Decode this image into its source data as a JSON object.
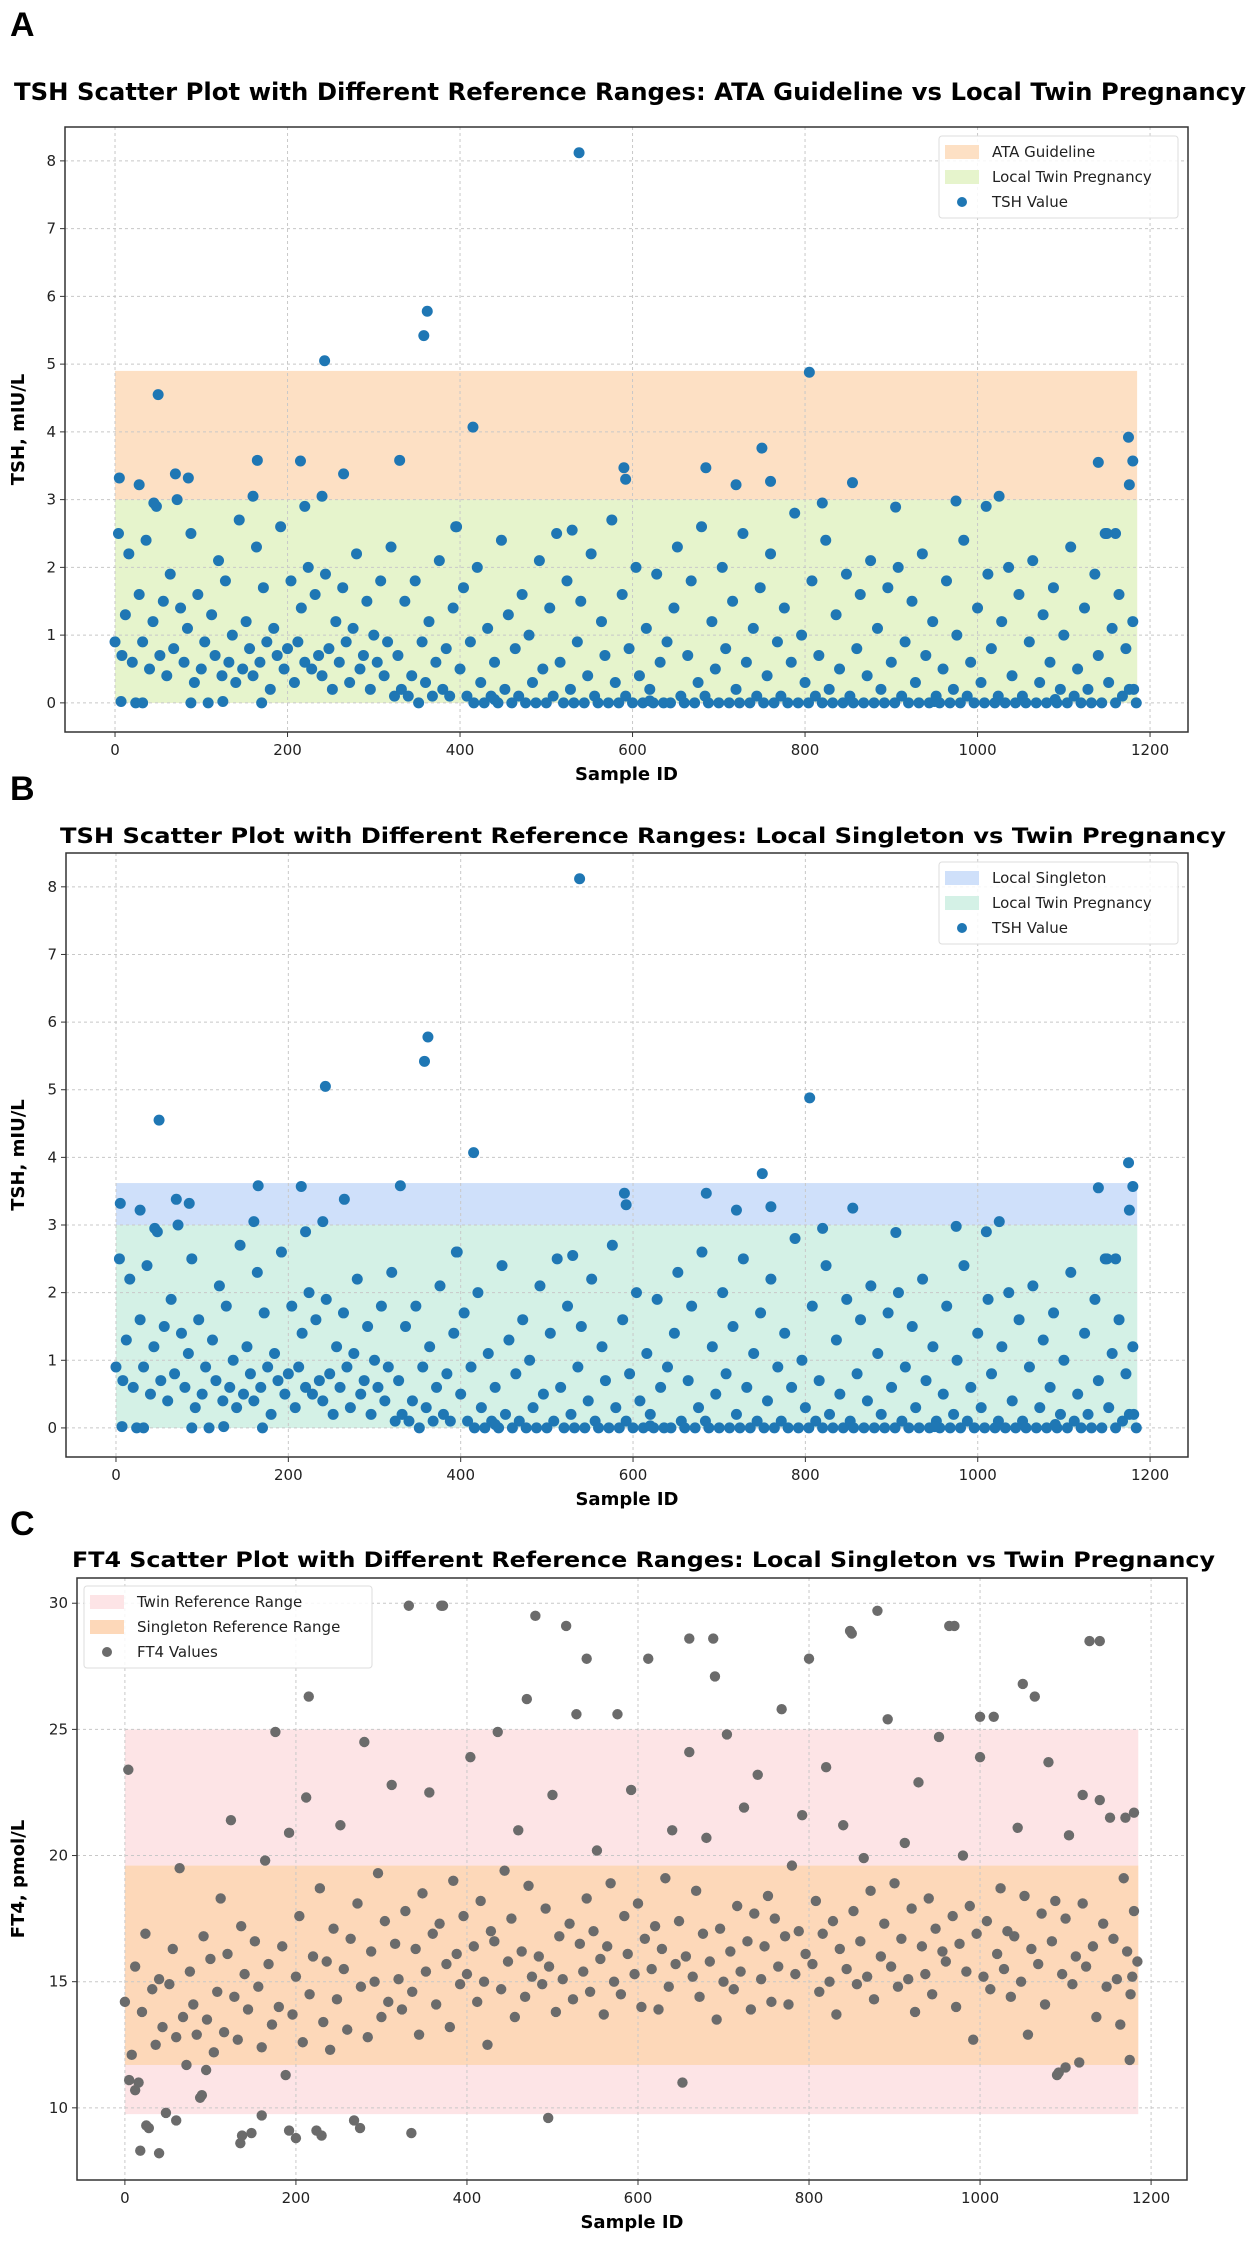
{
  "datasets": {
    "tsh": {
      "x_start": 0,
      "x_step": 4,
      "y": [
        0.9,
        2.5,
        0.7,
        1.3,
        2.2,
        0.6,
        0,
        1.6,
        0.9,
        2.4,
        0.5,
        1.2,
        2.9,
        0.7,
        1.5,
        0.4,
        1.9,
        0.8,
        3.0,
        1.4,
        0.6,
        1.1,
        2.5,
        0.3,
        1.6,
        0.5,
        0.9,
        0,
        1.3,
        0.7,
        2.1,
        0.4,
        1.8,
        0.6,
        1.0,
        0.3,
        2.7,
        0.5,
        1.2,
        0.8,
        0.4,
        2.3,
        0.6,
        1.7,
        0.9,
        0.2,
        1.1,
        0.7,
        2.6,
        0.5,
        0.8,
        1.8,
        0.3,
        0.9,
        1.4,
        0.6,
        2.0,
        0.5,
        1.6,
        0.7,
        0.4,
        1.9,
        0.8,
        0.2,
        1.2,
        0.6,
        1.7,
        0.9,
        0.3,
        1.1,
        2.2,
        0.5,
        0.7,
        1.5,
        0.2,
        1.0,
        0.6,
        1.8,
        0.4,
        0.9,
        2.3,
        0.1,
        0.7,
        0.2,
        1.5,
        0.1,
        0.4,
        1.8,
        0,
        0.9,
        0.3,
        1.2,
        0.1,
        0.6,
        2.1,
        0.2,
        0.8,
        0.1,
        1.4,
        2.6,
        0.5,
        1.7,
        0.1,
        0.9,
        0,
        2.0,
        0.3,
        0,
        1.1,
        0.1,
        0.6,
        0,
        2.4,
        0.2,
        1.3,
        0,
        0.8,
        0.1,
        1.6,
        0,
        1.0,
        0.3,
        0,
        2.1,
        0.5,
        0,
        1.4,
        0.1,
        2.5,
        0.6,
        0,
        1.8,
        0.2,
        0,
        0.9,
        1.5,
        0,
        0.4,
        2.2,
        0.1,
        0,
        1.2,
        0.7,
        0,
        2.7,
        0.3,
        0,
        1.6,
        0.1,
        0.8,
        0,
        2.0,
        0.4,
        0,
        1.1,
        0.2,
        0,
        1.9,
        0.6,
        0,
        0.9,
        0,
        1.4,
        2.3,
        0.1,
        0,
        0.7,
        1.8,
        0,
        0.3,
        2.6,
        0.1,
        0,
        1.2,
        0.5,
        0,
        2.0,
        0.8,
        0,
        1.5,
        0.2,
        0,
        2.5,
        0.6,
        0,
        1.1,
        0.1,
        1.7,
        0,
        0.4,
        2.2,
        0,
        0.9,
        0.1,
        1.4,
        0,
        0.6,
        2.8,
        0,
        1.0,
        0.3,
        0,
        1.8,
        0.1,
        0.7,
        0,
        2.4,
        0.2,
        0,
        1.3,
        0.5,
        0,
        1.9,
        0.1,
        0,
        0.8,
        1.6,
        0,
        0.4,
        2.1,
        0,
        1.1,
        0.2,
        0,
        1.7,
        0.6,
        0,
        2.0,
        0.1,
        0.9,
        0,
        1.5,
        0.3,
        0,
        2.2,
        0.7,
        0,
        1.2,
        0.1,
        0,
        0.5,
        1.8,
        0,
        0.2,
        1.0,
        0,
        2.4,
        0.1,
        0.6,
        0,
        1.4,
        0.3,
        0,
        1.9,
        0.8,
        0,
        0.1,
        1.2,
        0,
        2.0,
        0.4,
        0,
        1.6,
        0.1,
        0,
        0.9,
        2.1,
        0,
        0.3,
        1.3,
        0,
        0.6,
        1.7,
        0,
        0.2,
        1.0,
        0,
        2.3,
        0.1,
        0.5,
        0,
        1.4,
        0.2,
        0,
        1.9,
        0.7,
        0,
        2.5,
        0.3,
        1.1,
        0,
        1.6,
        0.1,
        0.8,
        0.2,
        1.2,
        0
      ],
      "extra_points": [
        [
          50,
          4.55
        ],
        [
          243,
          5.05
        ],
        [
          358,
          5.42
        ],
        [
          362,
          5.78
        ],
        [
          415,
          4.07
        ],
        [
          538,
          8.12
        ],
        [
          805,
          4.88
        ],
        [
          750,
          3.76
        ],
        [
          1175,
          3.92
        ],
        [
          1180,
          3.57
        ],
        [
          1140,
          3.55
        ],
        [
          1176,
          3.22
        ],
        [
          330,
          3.58
        ],
        [
          165,
          3.58
        ],
        [
          215,
          3.57
        ],
        [
          265,
          3.38
        ],
        [
          70,
          3.38
        ],
        [
          85,
          3.32
        ],
        [
          5,
          3.32
        ],
        [
          28,
          3.22
        ],
        [
          590,
          3.47
        ],
        [
          592,
          3.3
        ],
        [
          685,
          3.47
        ],
        [
          720,
          3.22
        ],
        [
          760,
          3.27
        ],
        [
          855,
          3.25
        ],
        [
          1025,
          3.05
        ],
        [
          1010,
          2.9
        ],
        [
          975,
          2.98
        ],
        [
          905,
          2.89
        ],
        [
          820,
          2.95
        ],
        [
          160,
          3.05
        ],
        [
          240,
          3.05
        ],
        [
          45,
          2.95
        ],
        [
          220,
          2.9
        ],
        [
          1160,
          2.5
        ],
        [
          1150,
          2.5
        ],
        [
          530,
          2.55
        ],
        [
          395,
          2.6
        ],
        [
          7,
          0.02
        ],
        [
          32,
          0
        ],
        [
          88,
          0
        ],
        [
          125,
          0.02
        ],
        [
          170,
          0
        ],
        [
          440,
          0.05
        ],
        [
          620,
          0.03
        ],
        [
          950,
          0.02
        ],
        [
          1090,
          0.05
        ],
        [
          1181,
          0.2
        ]
      ]
    },
    "ft4": {
      "x_start": 0,
      "x_step": 4,
      "y": [
        14.2,
        23.4,
        12.1,
        15.6,
        11.0,
        13.8,
        16.9,
        9.2,
        14.7,
        12.5,
        15.1,
        13.2,
        9.8,
        14.9,
        16.3,
        12.8,
        19.5,
        13.6,
        11.7,
        15.4,
        14.1,
        12.9,
        10.4,
        16.8,
        13.5,
        15.9,
        12.2,
        14.6,
        18.3,
        13.0,
        16.1,
        21.4,
        14.4,
        12.7,
        17.2,
        15.3,
        13.9,
        9.0,
        16.6,
        14.8,
        12.4,
        19.8,
        15.7,
        13.3,
        24.9,
        14.0,
        16.4,
        11.3,
        20.9,
        13.7,
        15.2,
        17.6,
        12.6,
        22.3,
        14.5,
        16.0,
        9.1,
        18.7,
        13.4,
        15.8,
        12.3,
        17.1,
        14.3,
        21.2,
        15.5,
        13.1,
        16.7,
        9.5,
        18.1,
        14.8,
        24.5,
        12.8,
        16.2,
        15.0,
        19.3,
        13.6,
        17.4,
        14.2,
        22.8,
        16.5,
        15.1,
        13.9,
        17.8,
        29.9,
        14.6,
        16.3,
        12.9,
        18.5,
        15.4,
        22.5,
        16.9,
        14.1,
        17.3,
        29.9,
        15.7,
        13.2,
        19.0,
        16.1,
        14.9,
        17.6,
        15.3,
        23.9,
        16.4,
        14.2,
        18.2,
        15.0,
        12.5,
        17.0,
        16.6,
        24.9,
        14.7,
        19.4,
        15.8,
        17.5,
        13.6,
        21.0,
        16.2,
        14.4,
        18.8,
        15.2,
        29.5,
        16.0,
        14.9,
        17.9,
        15.6,
        22.4,
        13.8,
        16.8,
        15.1,
        29.1,
        17.3,
        14.3,
        25.6,
        16.5,
        15.4,
        18.3,
        14.6,
        17.0,
        20.2,
        15.9,
        13.7,
        16.4,
        18.9,
        15.0,
        25.6,
        14.5,
        17.6,
        16.1,
        22.6,
        15.3,
        18.1,
        14.0,
        16.7,
        27.8,
        15.5,
        17.2,
        13.9,
        16.3,
        19.1,
        14.8,
        21.0,
        15.7,
        17.4,
        11.0,
        16.0,
        24.1,
        15.2,
        18.6,
        14.4,
        16.9,
        20.7,
        15.8,
        28.6,
        13.5,
        17.1,
        15.0,
        24.8,
        16.2,
        14.7,
        18.0,
        15.4,
        21.9,
        16.6,
        13.9,
        17.7,
        23.2,
        15.1,
        16.4,
        18.4,
        14.2,
        17.5,
        15.6,
        25.8,
        16.8,
        14.1,
        19.6,
        15.3,
        17.0,
        21.6,
        16.1,
        27.8,
        15.7,
        18.2,
        14.6,
        16.9,
        23.5,
        15.0,
        17.4,
        13.7,
        16.3,
        21.2,
        15.5,
        28.9,
        17.8,
        14.9,
        16.6,
        19.9,
        15.2,
        18.6,
        14.3,
        29.7,
        16.0,
        17.3,
        25.4,
        15.6,
        18.9,
        14.8,
        16.7,
        20.5,
        15.1,
        17.9,
        13.8,
        22.9,
        16.4,
        15.3,
        18.3,
        14.5,
        17.1,
        24.7,
        16.2,
        15.8,
        29.1,
        17.6,
        14.0,
        16.5,
        20.0,
        15.4,
        18.0,
        12.7,
        16.9,
        23.9,
        15.2,
        17.4,
        14.7,
        25.5,
        16.1,
        18.7,
        15.5,
        17.0,
        14.4,
        16.8,
        21.1,
        15.0,
        18.4,
        12.9,
        16.3,
        26.3,
        15.7,
        17.7,
        14.1,
        23.7,
        16.6,
        18.2,
        11.4,
        15.3,
        17.5,
        20.8,
        14.9,
        16.0,
        11.8,
        18.1,
        15.6,
        28.5,
        16.4,
        13.6,
        22.2,
        17.3,
        14.8,
        21.5,
        16.7,
        15.1,
        13.3,
        19.1,
        16.2,
        14.5,
        21.7,
        15.8
      ],
      "extra_points": [
        [
          18,
          8.3
        ],
        [
          40,
          8.2
        ],
        [
          135,
          8.6
        ],
        [
          137,
          8.9
        ],
        [
          200,
          8.8
        ],
        [
          192,
          9.1
        ],
        [
          335,
          9.0
        ],
        [
          495,
          9.6
        ],
        [
          25,
          9.3
        ],
        [
          60,
          9.5
        ],
        [
          160,
          9.7
        ],
        [
          230,
          8.9
        ],
        [
          275,
          9.2
        ],
        [
          850,
          28.8
        ],
        [
          1050,
          26.8
        ],
        [
          970,
          29.1
        ],
        [
          1140,
          28.5
        ],
        [
          660,
          28.6
        ],
        [
          690,
          27.1
        ],
        [
          540,
          27.8
        ],
        [
          370,
          29.9
        ],
        [
          470,
          26.2
        ],
        [
          215,
          26.3
        ],
        [
          1000,
          25.5
        ],
        [
          1120,
          22.4
        ],
        [
          1170,
          21.5
        ],
        [
          1180,
          17.8
        ],
        [
          1178,
          15.2
        ],
        [
          1090,
          11.3
        ],
        [
          1100,
          11.6
        ],
        [
          1175,
          11.9
        ],
        [
          5,
          11.1
        ],
        [
          12,
          10.7
        ],
        [
          90,
          10.5
        ],
        [
          95,
          11.5
        ]
      ]
    }
  },
  "chart_data": [
    {
      "panel": "A",
      "type": "scatter",
      "title": "TSH Scatter Plot with Different Reference Ranges: ATA Guideline vs Local Twin Pregnancy",
      "xlabel": "Sample ID",
      "ylabel": "TSH, mIU/L",
      "xlim": [
        -58,
        1244
      ],
      "ylim": [
        -0.43,
        8.5
      ],
      "xticks": [
        0,
        200,
        400,
        600,
        800,
        1000,
        1200
      ],
      "yticks": [
        0,
        1,
        2,
        3,
        4,
        5,
        6,
        7,
        8
      ],
      "grid": true,
      "dataset": "tsh",
      "point_color": "#1f77b4",
      "bands": [
        {
          "label": "ATA Guideline",
          "y_range": [
            0,
            4.9
          ],
          "x_range": [
            0,
            1185
          ],
          "color": "#fde0c4"
        },
        {
          "label": "Local Twin Pregnancy",
          "y_range": [
            0,
            3.0
          ],
          "x_range": [
            0,
            1185
          ],
          "color": "#e6f4cc"
        }
      ],
      "legend": {
        "placement": "top-right",
        "entries": [
          "ATA Guideline",
          "Local Twin Pregnancy",
          "TSH Value"
        ]
      }
    },
    {
      "panel": "B",
      "type": "scatter",
      "title": "TSH Scatter Plot with Different Reference Ranges: Local Singleton vs Twin Pregnancy",
      "xlabel": "Sample ID",
      "ylabel": "TSH, mIU/L",
      "xlim": [
        -58,
        1244
      ],
      "ylim": [
        -0.43,
        8.5
      ],
      "xticks": [
        0,
        200,
        400,
        600,
        800,
        1000,
        1200
      ],
      "yticks": [
        0,
        1,
        2,
        3,
        4,
        5,
        6,
        7,
        8
      ],
      "grid": true,
      "dataset": "tsh",
      "point_color": "#1f77b4",
      "bands": [
        {
          "label": "Local Singleton",
          "y_range": [
            0,
            3.62
          ],
          "x_range": [
            0,
            1185
          ],
          "color": "#cfe0fa"
        },
        {
          "label": "Local Twin Pregnancy",
          "y_range": [
            0,
            3.0
          ],
          "x_range": [
            0,
            1185
          ],
          "color": "#d4f1e6"
        }
      ],
      "legend": {
        "placement": "top-right",
        "entries": [
          "Local Singleton",
          "Local Twin Pregnancy",
          "TSH Value"
        ]
      }
    },
    {
      "panel": "C",
      "type": "scatter",
      "title": "FT4 Scatter Plot with Different Reference Ranges: Local Singleton vs Twin Pregnancy",
      "xlabel": "Sample ID",
      "ylabel": "FT4, pmol/L",
      "xlim": [
        -56,
        1242
      ],
      "ylim": [
        7.14,
        31.0
      ],
      "xticks": [
        0,
        200,
        400,
        600,
        800,
        1000,
        1200
      ],
      "yticks": [
        10,
        15,
        20,
        25,
        30
      ],
      "grid": true,
      "dataset": "ft4",
      "point_color": "#6b6b6b",
      "bands": [
        {
          "label": "Twin Reference Range",
          "y_range": [
            9.75,
            25.0
          ],
          "x_range": [
            0,
            1185
          ],
          "color": "#fde4e6"
        },
        {
          "label": "Singleton Reference Range",
          "y_range": [
            11.7,
            19.6
          ],
          "x_range": [
            0,
            1185
          ],
          "color": "#fdd8b9"
        }
      ],
      "legend": {
        "placement": "top-left",
        "entries": [
          "Twin Reference Range",
          "Singleton Reference Range",
          "FT4 Values"
        ]
      }
    }
  ]
}
